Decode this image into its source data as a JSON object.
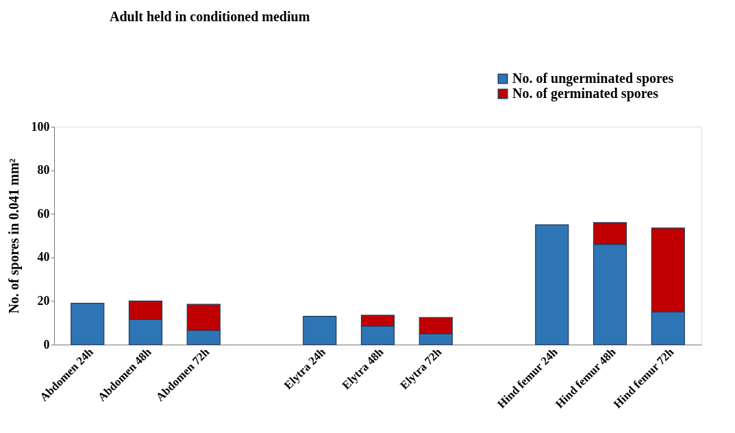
{
  "chart_data": {
    "type": "bar",
    "title": "Adult held in conditioned medium",
    "ylabel": "No. of spores in 0.041  mm²",
    "categories": [
      "Abdomen 24h",
      "Abdomen 48h",
      "Abdomen 72h",
      null,
      "Elytra 24h",
      "Elytra 48h",
      "Elytra 72h",
      null,
      "Hind femur 24h",
      "Hind femur 48h",
      "Hind femur 72h"
    ],
    "series": [
      {
        "name": "No. of ungerminated spores",
        "color": "#2e75b6",
        "values": [
          19,
          11.5,
          6.5,
          null,
          13,
          8.5,
          5,
          null,
          55,
          46,
          15
        ]
      },
      {
        "name": "No. of germinated spores",
        "color": "#c00000",
        "values": [
          null,
          8.5,
          12,
          null,
          null,
          5,
          7.5,
          null,
          null,
          10,
          38.5
        ]
      }
    ],
    "stacked": true,
    "ylim": [
      0,
      100
    ],
    "yticks": [
      0,
      20,
      40,
      60,
      80,
      100
    ],
    "grid": false,
    "legend": "top right"
  }
}
